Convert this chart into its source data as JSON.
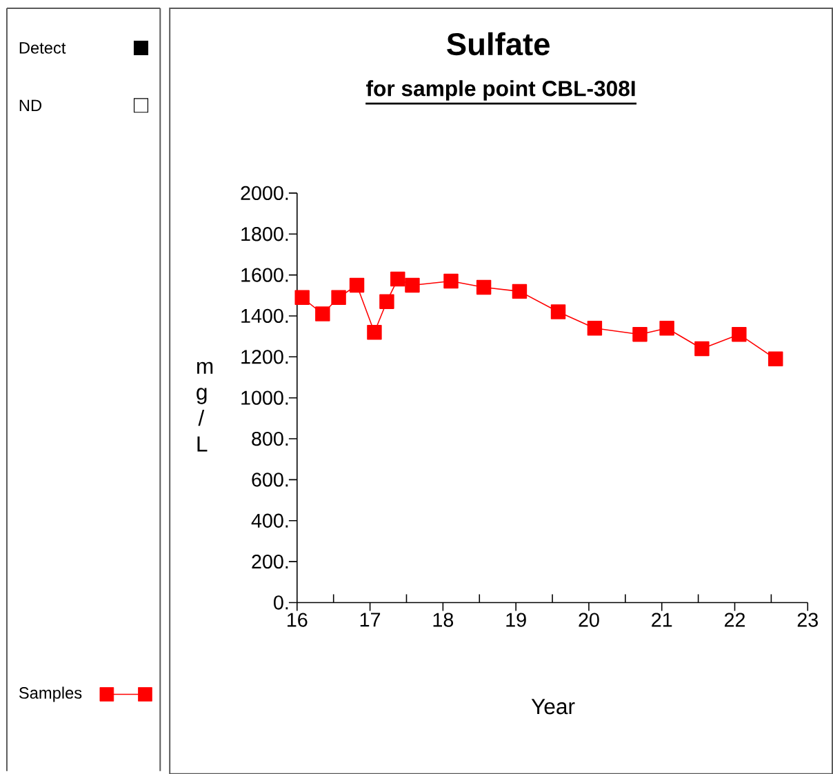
{
  "chart_data": {
    "type": "line",
    "title": "Sulfate",
    "subtitle": "for sample point CBL-308I",
    "xlabel": "Year",
    "ylabel": "m g / L",
    "x": [
      16.07,
      16.35,
      16.57,
      16.82,
      17.06,
      17.23,
      17.38,
      17.58,
      18.11,
      18.56,
      19.05,
      19.58,
      20.08,
      20.7,
      21.07,
      21.55,
      22.06,
      22.56
    ],
    "series": [
      {
        "name": "Samples",
        "color": "#ff0000",
        "values": [
          1490,
          1410,
          1490,
          1550,
          1320,
          1470,
          1580,
          1550,
          1570,
          1540,
          1520,
          1420,
          1340,
          1310,
          1340,
          1240,
          1310,
          1190
        ]
      }
    ],
    "xlim": [
      16,
      23
    ],
    "ylim": [
      0,
      2000
    ],
    "xticks": [
      16,
      {
        "value": 16.5,
        "label": null
      },
      17,
      {
        "value": 17.5,
        "label": null
      },
      18,
      {
        "value": 18.5,
        "label": null
      },
      19,
      {
        "value": 19.5,
        "label": null
      },
      20,
      {
        "value": 20.5,
        "label": null
      },
      21,
      {
        "value": 21.5,
        "label": null
      },
      22,
      {
        "value": 22.5,
        "label": null
      },
      23
    ],
    "yticks": [
      {
        "value": 0,
        "label": "0."
      },
      {
        "value": 200,
        "label": "200."
      },
      {
        "value": 400,
        "label": "400."
      },
      {
        "value": 600,
        "label": "600."
      },
      {
        "value": 800,
        "label": "800."
      },
      {
        "value": 1000,
        "label": "1000."
      },
      {
        "value": 1200,
        "label": "1200."
      },
      {
        "value": 1400,
        "label": "1400."
      },
      {
        "value": 1600,
        "label": "1600."
      },
      {
        "value": 1800,
        "label": "1800."
      },
      {
        "value": 2000,
        "label": "2000."
      }
    ],
    "annotations": [
      "Detect",
      "ND"
    ],
    "legend": "left",
    "marker": "square",
    "line_style": "solid",
    "grid": false
  }
}
